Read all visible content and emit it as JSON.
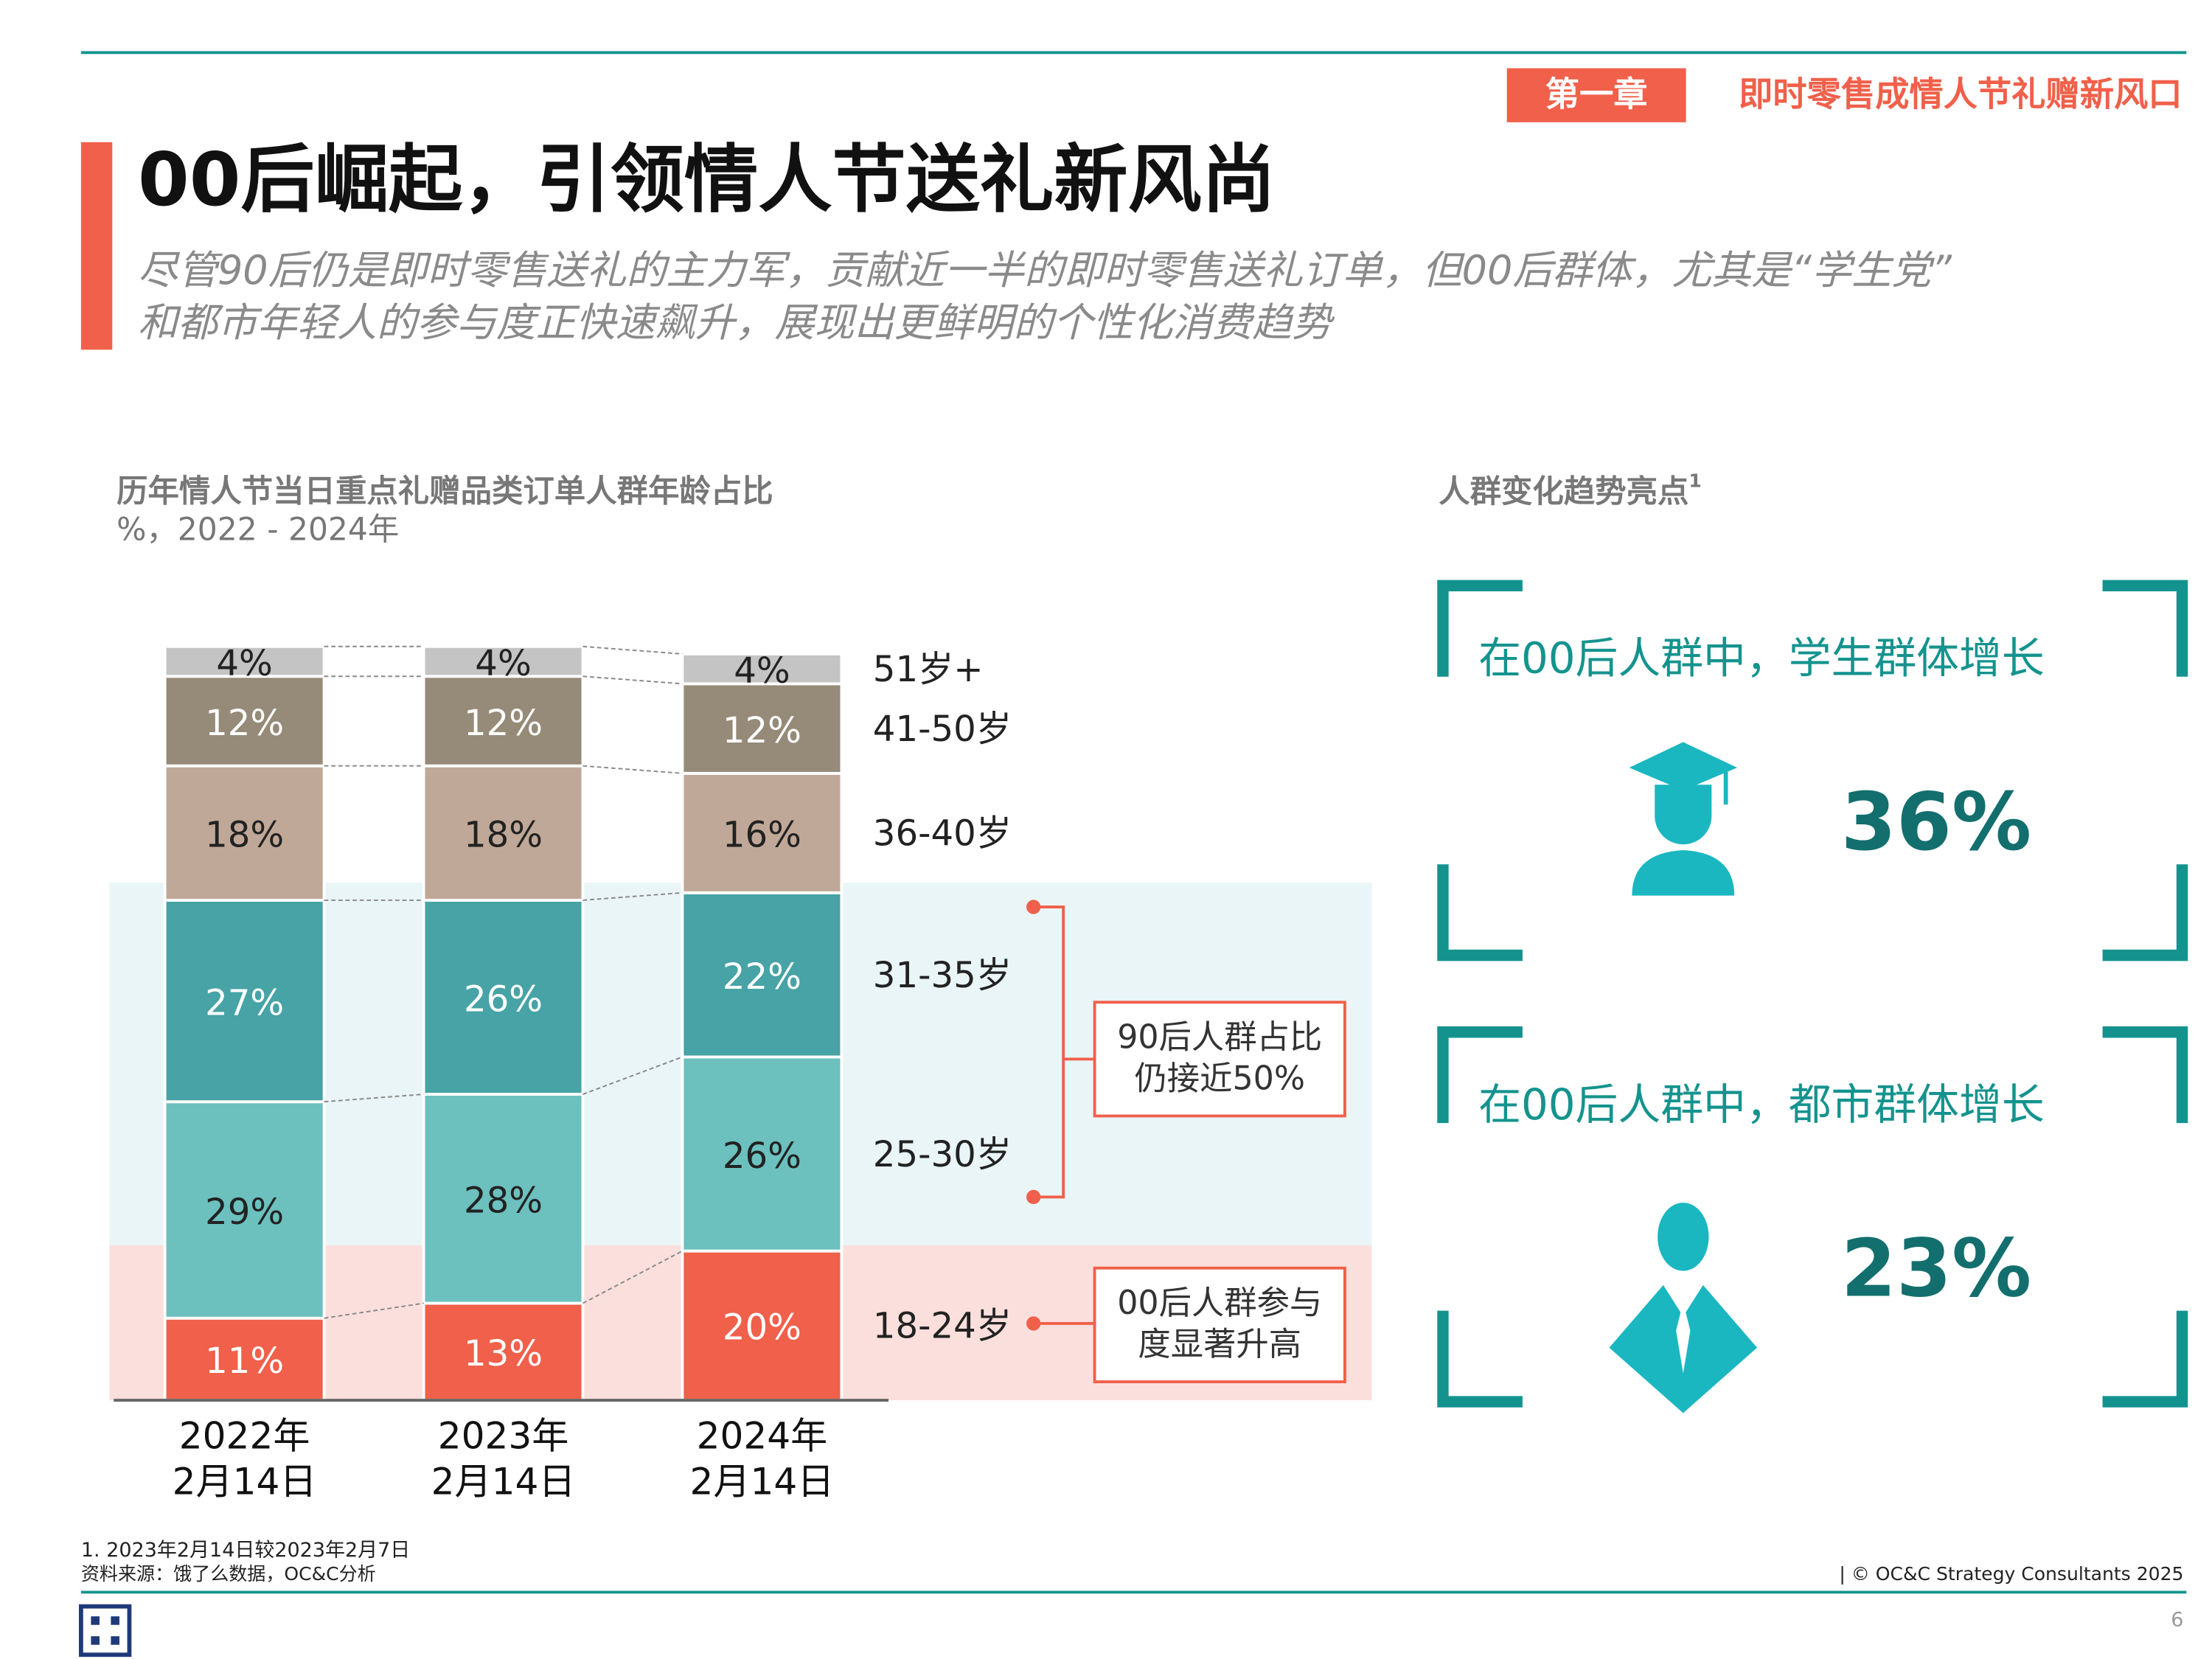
{
  "header": {
    "chapter": "第一章",
    "chapter_title": "即时零售成情人节礼赠新风口",
    "title": "00后崛起，引领情人节送礼新风尚",
    "subtitle": [
      "尽管90后仍是即时零售送礼的主力军，贡献近一半的即时零售送礼订单，但00后群体，尤其是“学生党”",
      "和都市年轻人的参与度正快速飙升，展现出更鲜明的个性化消费趋势"
    ]
  },
  "chart_data": {
    "type": "bar",
    "stacked": true,
    "title": "历年情人节当日重点礼赠品类订单人群年龄占比",
    "subtitle": "%，2022 - 2024年",
    "categories": [
      [
        "2022年",
        "2月14日"
      ],
      [
        "2023年",
        "2月14日"
      ],
      [
        "2024年",
        "2月14日"
      ]
    ],
    "series": [
      {
        "name": "18-24岁",
        "color": "#f0604a",
        "values": [
          11,
          13,
          20
        ],
        "value_labels": [
          "11%",
          "13%",
          "20%"
        ]
      },
      {
        "name": "25-30岁",
        "color": "#6cc0be",
        "values": [
          29,
          28,
          26
        ],
        "value_labels": [
          "29%",
          "28%",
          "26%"
        ]
      },
      {
        "name": "31-35岁",
        "color": "#47a3a5",
        "values": [
          27,
          26,
          22
        ],
        "value_labels": [
          "27%",
          "26%",
          "22%"
        ]
      },
      {
        "name": "36-40岁",
        "color": "#c0a898",
        "values": [
          18,
          18,
          16
        ],
        "value_labels": [
          "18%",
          "18%",
          "16%"
        ]
      },
      {
        "name": "41-50岁",
        "color": "#968a78",
        "values": [
          12,
          12,
          12
        ],
        "value_labels": [
          "12%",
          "12%",
          "12%"
        ]
      },
      {
        "name": "51岁+",
        "color": "#c4c4c4",
        "values": [
          4,
          4,
          4
        ],
        "value_labels": [
          "4%",
          "4%",
          "4%"
        ]
      }
    ],
    "annotations": [
      [
        "90后人群占比",
        "仍接近50%"
      ],
      [
        "00后人群参与",
        "度显著升高"
      ]
    ]
  },
  "highlights": {
    "title": "人群变化趋势亮点",
    "note_mark": "1",
    "cards": [
      {
        "text": "在00后人群中，学生群体增长",
        "value": "36%"
      },
      {
        "text": "在00后人群中，都市群体增长",
        "value": "23%"
      }
    ]
  },
  "footer": {
    "note": "1. 2023年2月14日较2023年2月7日",
    "source": "资料来源：饿了么数据，OC&C分析",
    "copyright": "| © OC&C Strategy Consultants 2025",
    "page": "6"
  }
}
